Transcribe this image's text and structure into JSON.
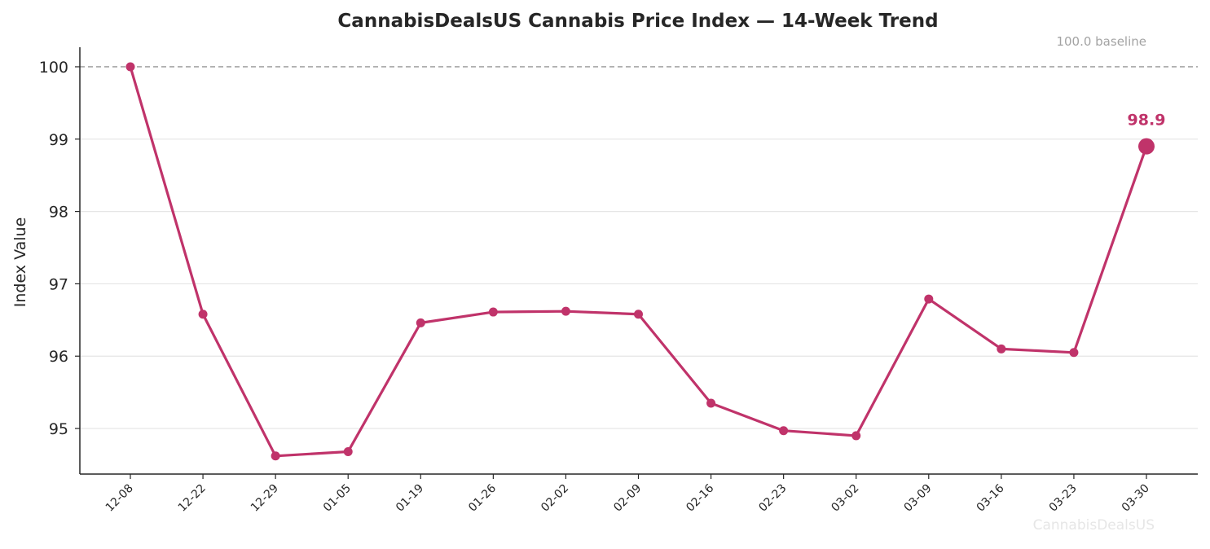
{
  "chart_data": {
    "type": "line",
    "title": "CannabisDealsUS Cannabis Price Index — 14-Week Trend",
    "xlabel": "",
    "ylabel": "Index Value",
    "categories": [
      "12-08",
      "12-22",
      "12-29",
      "01-05",
      "01-19",
      "01-26",
      "02-02",
      "02-09",
      "02-16",
      "02-23",
      "03-02",
      "03-09",
      "03-16",
      "03-23",
      "03-30"
    ],
    "series": [
      {
        "values": [
          100.0,
          96.58,
          94.62,
          94.68,
          96.46,
          96.61,
          96.62,
          96.58,
          95.35,
          94.97,
          94.9,
          96.79,
          96.1,
          96.05,
          98.9
        ]
      }
    ],
    "yticks": [
      "95",
      "96",
      "97",
      "98",
      "99",
      "100"
    ],
    "ylim": [
      94.37,
      100.27
    ],
    "baseline": {
      "value": 100.0,
      "label": "100.0 baseline"
    },
    "last_point_label": "98.9",
    "grid": "horizontal",
    "watermark": "CannabisDealsUS",
    "colors": {
      "line": "#c0336a",
      "baseline": "#a6a6a6",
      "grid": "#e5e5e5",
      "axis": "#262626"
    }
  }
}
